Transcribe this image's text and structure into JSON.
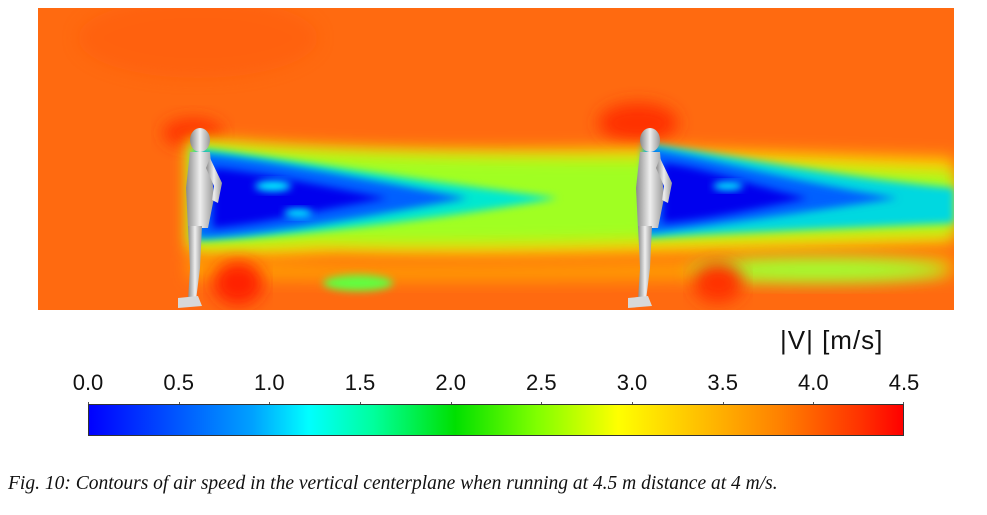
{
  "legend": {
    "title": "|V| [m/s]",
    "ticks": [
      "0.0",
      "0.5",
      "1.0",
      "1.5",
      "2.0",
      "2.5",
      "3.0",
      "3.5",
      "4.0",
      "4.5"
    ],
    "range": [
      0.0,
      4.5
    ],
    "colors": [
      "#0000ff",
      "#00ffff",
      "#00e000",
      "#ffff00",
      "#ff8000",
      "#ff0000"
    ]
  },
  "figure": {
    "freestream_color": "#ff6a10",
    "runners": [
      "runner-front",
      "runner-behind"
    ]
  },
  "caption": "Fig. 10: Contours of air speed in the vertical centerplane when running at 4.5 m distance at 4 m/s."
}
